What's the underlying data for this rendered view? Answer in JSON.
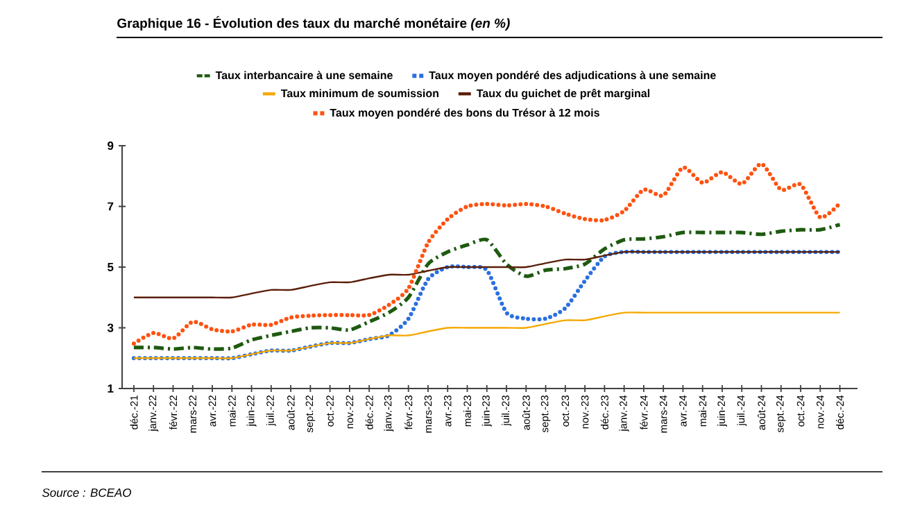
{
  "chart_data": {
    "type": "line",
    "title": "Graphique 16 - Évolution des taux du marché monétaire *(en %)*",
    "categories": [
      "déc.-21",
      "janv.-22",
      "févr.-22",
      "mars-22",
      "avr.-22",
      "mai-22",
      "juin-22",
      "juil.-22",
      "août-22",
      "sept.-22",
      "oct.-22",
      "nov.-22",
      "déc.-22",
      "janv.-23",
      "févr.-23",
      "mars-23",
      "avr.-23",
      "mai-23",
      "juin-23",
      "juil.-23",
      "août-23",
      "sept.-23",
      "oct.-23",
      "nov.-23",
      "déc.-23",
      "janv.-24",
      "févr.-24",
      "mars-24",
      "avr.-24",
      "mai-24",
      "juin-24",
      "juil.-24",
      "août-24",
      "sept.-24",
      "oct.-24",
      "nov.-24",
      "déc.-24"
    ],
    "series": [
      {
        "name": "Taux interbancaire à une semaine",
        "color": "#1e5a10",
        "line_style": "dashed",
        "values": [
          2.35,
          2.35,
          2.3,
          2.35,
          2.3,
          2.33,
          2.6,
          2.75,
          2.88,
          3.0,
          3.0,
          2.93,
          3.2,
          3.5,
          4.0,
          5.1,
          5.5,
          5.73,
          5.9,
          5.1,
          4.7,
          4.9,
          4.95,
          5.1,
          5.6,
          5.9,
          5.93,
          6.0,
          6.14,
          6.14,
          6.14,
          6.14,
          6.08,
          6.18,
          6.23,
          6.23,
          6.4
        ]
      },
      {
        "name": "Taux moyen pondéré des adjudications à une semaine",
        "color": "#2a6fe0",
        "line_style": "dotted",
        "values": [
          2.0,
          2.0,
          2.0,
          2.0,
          2.0,
          2.0,
          2.13,
          2.25,
          2.25,
          2.38,
          2.5,
          2.5,
          2.63,
          2.75,
          3.3,
          4.6,
          5.0,
          5.0,
          4.9,
          3.5,
          3.3,
          3.3,
          3.65,
          4.55,
          5.35,
          5.5,
          5.5,
          5.5,
          5.5,
          5.5,
          5.5,
          5.5,
          5.5,
          5.5,
          5.5,
          5.5,
          5.5
        ]
      },
      {
        "name": "Taux minimum de soumission",
        "color": "#f5a800",
        "line_style": "solid",
        "values": [
          2.0,
          2.0,
          2.0,
          2.0,
          2.0,
          2.0,
          2.13,
          2.25,
          2.25,
          2.38,
          2.5,
          2.5,
          2.63,
          2.75,
          2.75,
          2.88,
          3.0,
          3.0,
          3.0,
          3.0,
          3.0,
          3.13,
          3.25,
          3.25,
          3.38,
          3.5,
          3.5,
          3.5,
          3.5,
          3.5,
          3.5,
          3.5,
          3.5,
          3.5,
          3.5,
          3.5,
          3.5
        ]
      },
      {
        "name": "Taux du guichet de prêt marginal",
        "color": "#5a1e08",
        "line_style": "solid",
        "values": [
          4.0,
          4.0,
          4.0,
          4.0,
          4.0,
          4.0,
          4.13,
          4.25,
          4.25,
          4.38,
          4.5,
          4.5,
          4.63,
          4.75,
          4.75,
          4.88,
          5.0,
          5.0,
          5.0,
          5.0,
          5.0,
          5.13,
          5.25,
          5.25,
          5.38,
          5.5,
          5.5,
          5.5,
          5.5,
          5.5,
          5.5,
          5.5,
          5.5,
          5.5,
          5.5,
          5.5,
          5.5
        ]
      },
      {
        "name": "Taux moyen pondéré des bons du Trésor à 12 mois",
        "color": "#ff5210",
        "line_style": "dotted",
        "values": [
          2.48,
          2.83,
          2.65,
          3.2,
          2.95,
          2.88,
          3.1,
          3.1,
          3.34,
          3.4,
          3.42,
          3.42,
          3.42,
          3.75,
          4.3,
          5.8,
          6.58,
          7.0,
          7.08,
          7.03,
          7.08,
          7.0,
          6.76,
          6.58,
          6.55,
          6.85,
          7.55,
          7.36,
          8.28,
          7.78,
          8.13,
          7.74,
          8.4,
          7.55,
          7.72,
          6.64,
          7.1
        ]
      }
    ],
    "ylim": [
      1,
      9
    ],
    "yticks": [
      1,
      3,
      5,
      7,
      9
    ],
    "grid": false,
    "legend": "top",
    "marker": "none",
    "annotations": [
      "Source : BCEAO"
    ]
  }
}
